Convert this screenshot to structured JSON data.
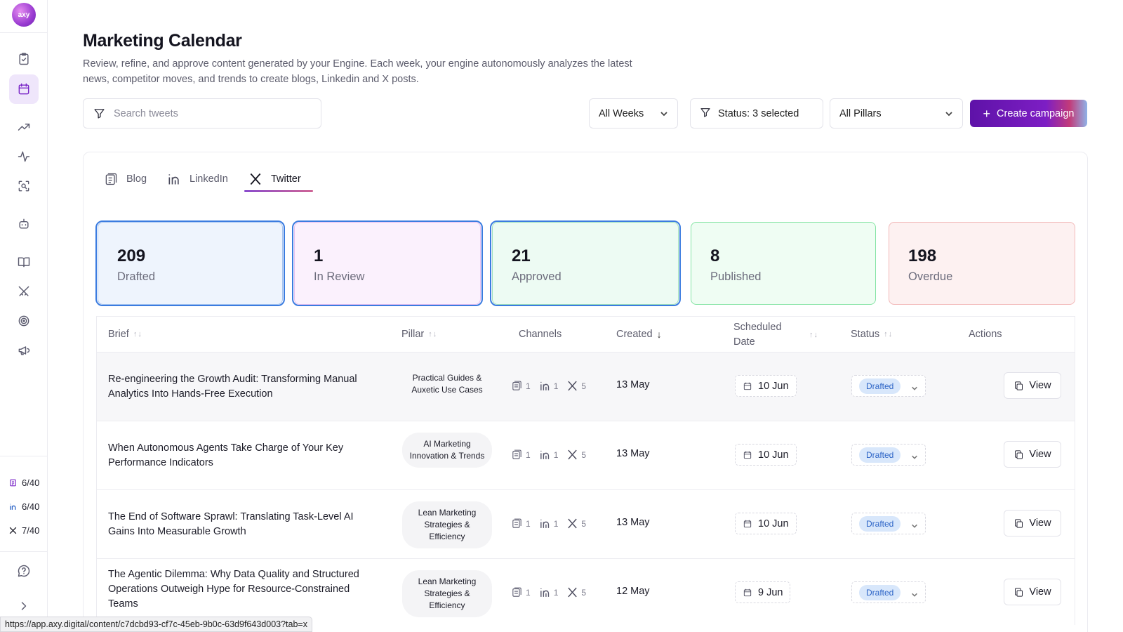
{
  "sidebar": {
    "logo_text": "axy",
    "quotas": [
      {
        "icon": "blog-icon",
        "value": "6/40"
      },
      {
        "icon": "linkedin-icon",
        "value": "6/40"
      },
      {
        "icon": "x-icon",
        "value": "7/40"
      }
    ]
  },
  "header": {
    "title": "Marketing Calendar",
    "description": "Review, refine, and approve content generated by your Engine. Each week, your engine autonomously analyzes the latest news, competitor moves, and trends to create blogs, Linkedin and X posts."
  },
  "toolbar": {
    "search_placeholder": "Search tweets",
    "weeks_label": "All Weeks",
    "status_label": "Status: 3 selected",
    "pillars_label": "All Pillars",
    "create_label": "Create campaign"
  },
  "tabs": [
    {
      "label": "Blog"
    },
    {
      "label": "LinkedIn"
    },
    {
      "label": "Twitter"
    }
  ],
  "stats": [
    {
      "value": "209",
      "label": "Drafted",
      "bg": "#eef4fd",
      "border": "#a9c6f0"
    },
    {
      "value": "1",
      "label": "In Review",
      "bg": "#fbf1fd",
      "border": "#e7bff0"
    },
    {
      "value": "21",
      "label": "Approved",
      "bg": "#edfbf3",
      "border": "#9fe0bb"
    },
    {
      "value": "8",
      "label": "Published",
      "bg": "#effdf3",
      "border": "#86e4a5"
    },
    {
      "value": "198",
      "label": "Overdue",
      "bg": "#fdf1f1",
      "border": "#f2b9b9"
    }
  ],
  "table": {
    "headers": {
      "brief": "Brief",
      "pillar": "Pillar",
      "channels": "Channels",
      "created": "Created",
      "scheduled": "Scheduled Date",
      "status": "Status",
      "actions": "Actions"
    },
    "rows": [
      {
        "brief": "Re-engineering the Growth Audit: Transforming Manual Analytics Into Hands-Free Execution",
        "pillar": "Practical Guides & Auxetic Use Cases",
        "blog": "1",
        "linkedin": "1",
        "x": "5",
        "created": "13 May",
        "scheduled": "10 Jun",
        "status": "Drafted",
        "action": "View"
      },
      {
        "brief": "When Autonomous Agents Take Charge of Your Key Performance Indicators",
        "pillar": "AI Marketing Innovation & Trends",
        "blog": "1",
        "linkedin": "1",
        "x": "5",
        "created": "13 May",
        "scheduled": "10 Jun",
        "status": "Drafted",
        "action": "View"
      },
      {
        "brief": "The End of Software Sprawl: Translating Task-Level AI Gains Into Measurable Growth",
        "pillar": "Lean Marketing Strategies & Efficiency",
        "blog": "1",
        "linkedin": "1",
        "x": "5",
        "created": "13 May",
        "scheduled": "10 Jun",
        "status": "Drafted",
        "action": "View"
      },
      {
        "brief": "The Agentic Dilemma: Why Data Quality and Structured Operations Outweigh Hype for Resource-Constrained Teams",
        "pillar": "Lean Marketing Strategies & Efficiency",
        "blog": "1",
        "linkedin": "1",
        "x": "5",
        "created": "12 May",
        "scheduled": "9 Jun",
        "status": "Drafted",
        "action": "View"
      }
    ]
  },
  "status_bar": {
    "url": "https://app.axy.digital/content/c7dcbd93-cf7c-45eb-9b0c-63d9f643d003?tab=x"
  }
}
